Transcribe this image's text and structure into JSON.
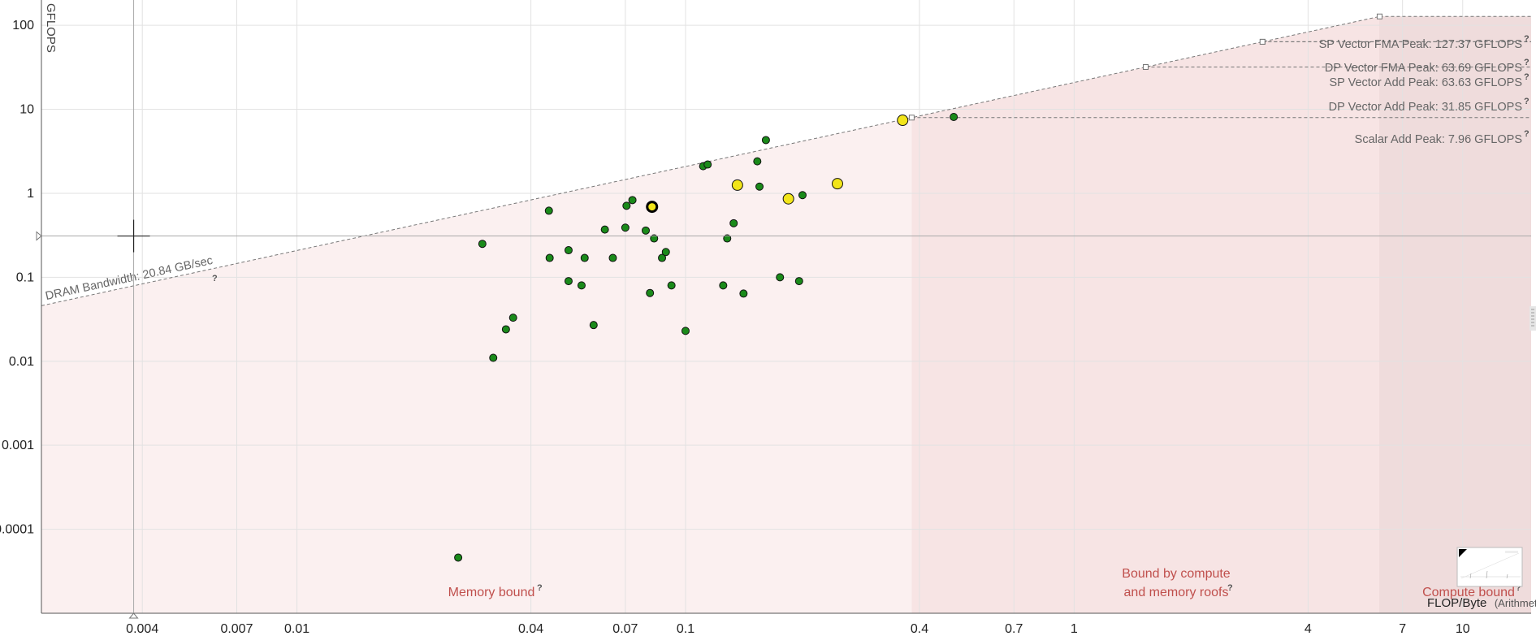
{
  "chart_data": {
    "type": "scatter",
    "scale": "log-log",
    "ylabel": "GFLOPS",
    "xlabel_main": "FLOP/Byte",
    "xlabel_paren": "(Arithmetic Intensity)",
    "xlim": [
      0.0022,
      15
    ],
    "ylim": [
      1e-05,
      200
    ],
    "x_ticks": [
      {
        "v": 0.004,
        "label": "0.004"
      },
      {
        "v": 0.007,
        "label": "0.007"
      },
      {
        "v": 0.01,
        "label": "0.01"
      },
      {
        "v": 0.04,
        "label": "0.04"
      },
      {
        "v": 0.07,
        "label": "0.07"
      },
      {
        "v": 0.1,
        "label": "0.1"
      },
      {
        "v": 0.4,
        "label": "0.4"
      },
      {
        "v": 0.7,
        "label": "0.7"
      },
      {
        "v": 1,
        "label": "1"
      },
      {
        "v": 4,
        "label": "4"
      },
      {
        "v": 7,
        "label": "7"
      },
      {
        "v": 10,
        "label": "10"
      }
    ],
    "y_ticks": [
      {
        "v": 100,
        "label": "100"
      },
      {
        "v": 10,
        "label": "10"
      },
      {
        "v": 1,
        "label": "1"
      },
      {
        "v": 0.1,
        "label": "0.1"
      },
      {
        "v": 0.01,
        "label": "0.01"
      },
      {
        "v": 0.001,
        "label": "0.001"
      },
      {
        "v": 0.0001,
        "label": "0.0001"
      }
    ],
    "memory_roof": {
      "name": "DRAM Bandwidth: 20.84 GB/sec",
      "bandwidth_gbs": 20.84
    },
    "compute_roofs": [
      {
        "name": "SP Vector FMA Peak: 127.37 GFLOPS",
        "gflops": 127.37
      },
      {
        "name": "DP Vector FMA Peak: 63.69 GFLOPS",
        "gflops": 63.69
      },
      {
        "name": "SP Vector Add Peak: 63.63 GFLOPS",
        "gflops": 63.63
      },
      {
        "name": "DP Vector Add Peak: 31.85 GFLOPS",
        "gflops": 31.85
      },
      {
        "name": "Scalar Add Peak: 7.96 GFLOPS",
        "gflops": 7.96
      }
    ],
    "regions": {
      "memory": "Memory bound",
      "both_line1": "Bound by compute",
      "both_line2": "and memory roofs",
      "compute": "Compute bound",
      "memory_compute_boundary_x": 0.382,
      "compute_region_start_x": 6.1
    },
    "crosshair": {
      "x": 0.0038,
      "y": 0.31
    },
    "points": [
      {
        "x": 0.0445,
        "y": 0.62,
        "color": "#1a8a1a"
      },
      {
        "x": 0.03,
        "y": 0.25,
        "color": "#1a8a1a"
      },
      {
        "x": 0.0447,
        "y": 0.17,
        "color": "#1a8a1a"
      },
      {
        "x": 0.05,
        "y": 0.21,
        "color": "#1a8a1a"
      },
      {
        "x": 0.055,
        "y": 0.17,
        "color": "#1a8a1a"
      },
      {
        "x": 0.062,
        "y": 0.37,
        "color": "#1a8a1a"
      },
      {
        "x": 0.065,
        "y": 0.17,
        "color": "#1a8a1a"
      },
      {
        "x": 0.07,
        "y": 0.39,
        "color": "#1a8a1a"
      },
      {
        "x": 0.0705,
        "y": 0.71,
        "color": "#1a8a1a"
      },
      {
        "x": 0.073,
        "y": 0.83,
        "color": "#1a8a1a"
      },
      {
        "x": 0.079,
        "y": 0.36,
        "color": "#1a8a1a"
      },
      {
        "x": 0.083,
        "y": 0.29,
        "color": "#1a8a1a"
      },
      {
        "x": 0.087,
        "y": 0.17,
        "color": "#1a8a1a"
      },
      {
        "x": 0.089,
        "y": 0.2,
        "color": "#1a8a1a"
      },
      {
        "x": 0.05,
        "y": 0.09,
        "color": "#1a8a1a"
      },
      {
        "x": 0.054,
        "y": 0.08,
        "color": "#1a8a1a"
      },
      {
        "x": 0.081,
        "y": 0.065,
        "color": "#1a8a1a"
      },
      {
        "x": 0.092,
        "y": 0.08,
        "color": "#1a8a1a"
      },
      {
        "x": 0.058,
        "y": 0.027,
        "color": "#1a8a1a"
      },
      {
        "x": 0.032,
        "y": 0.011,
        "color": "#1a8a1a"
      },
      {
        "x": 0.0345,
        "y": 0.024,
        "color": "#1a8a1a"
      },
      {
        "x": 0.036,
        "y": 0.033,
        "color": "#1a8a1a"
      },
      {
        "x": 0.1,
        "y": 0.023,
        "color": "#1a8a1a"
      },
      {
        "x": 0.026,
        "y": 4.6e-05,
        "color": "#1a8a1a"
      },
      {
        "x": 0.111,
        "y": 2.1,
        "color": "#1a8a1a"
      },
      {
        "x": 0.114,
        "y": 2.2,
        "color": "#1a8a1a"
      },
      {
        "x": 0.153,
        "y": 2.4,
        "color": "#1a8a1a"
      },
      {
        "x": 0.161,
        "y": 4.3,
        "color": "#1a8a1a"
      },
      {
        "x": 0.155,
        "y": 1.2,
        "color": "#1a8a1a"
      },
      {
        "x": 0.2,
        "y": 0.95,
        "color": "#1a8a1a"
      },
      {
        "x": 0.133,
        "y": 0.44,
        "color": "#1a8a1a"
      },
      {
        "x": 0.128,
        "y": 0.29,
        "color": "#1a8a1a"
      },
      {
        "x": 0.125,
        "y": 0.08,
        "color": "#1a8a1a"
      },
      {
        "x": 0.141,
        "y": 0.064,
        "color": "#1a8a1a"
      },
      {
        "x": 0.175,
        "y": 0.1,
        "color": "#1a8a1a"
      },
      {
        "x": 0.196,
        "y": 0.09,
        "color": "#1a8a1a"
      },
      {
        "x": 0.49,
        "y": 8.1,
        "color": "#1a8a1a"
      },
      {
        "x": 0.082,
        "y": 0.69,
        "color": "#f2e51a",
        "selected": true
      },
      {
        "x": 0.136,
        "y": 1.25,
        "color": "#f2e51a"
      },
      {
        "x": 0.184,
        "y": 0.86,
        "color": "#f2e51a"
      },
      {
        "x": 0.246,
        "y": 1.3,
        "color": "#f2e51a"
      },
      {
        "x": 0.362,
        "y": 7.4,
        "color": "#f2e51a"
      }
    ]
  }
}
